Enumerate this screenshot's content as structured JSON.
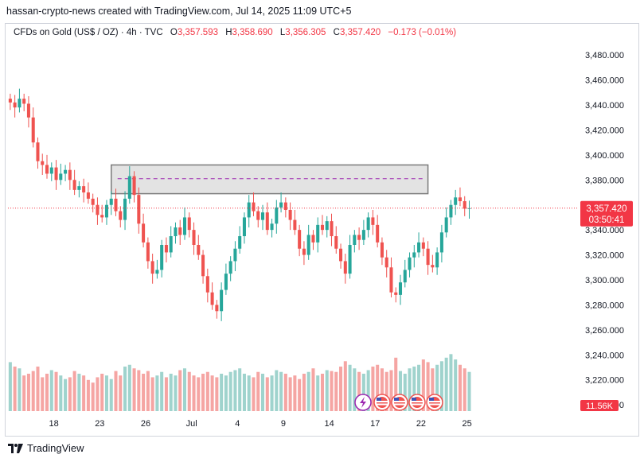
{
  "header": {
    "title": "hassan-crypto-news created with TradingView.com, Jul 14, 2025 11:09 UTC+5"
  },
  "legend": {
    "symbol": "CFDs on Gold (US$ / OZ) · 4h · TVC",
    "open_label": "O",
    "open": "3,357.593",
    "high_label": "H",
    "high": "3,358.690",
    "low_label": "L",
    "low": "3,356.305",
    "close_label": "C",
    "close": "3,357.420",
    "change": "−0.173 (−0.01%)"
  },
  "price_tag": {
    "price": "3,357.420",
    "countdown": "03:50:41"
  },
  "volume_tag": "11.56K",
  "footer": {
    "logo_text": "TradingView",
    "logo_icon": "tradingview-logo-icon"
  },
  "colors": {
    "up": "#26a69a",
    "down": "#ef5350",
    "up_vol": "#9fd3cd",
    "down_vol": "#f5a5a3",
    "price_line": "#f23645",
    "zone_fill": "#e0e0e0",
    "zone_line": "#9c27b0"
  },
  "chart_data": {
    "type": "candlestick",
    "y_ticks": [
      "3,480.000",
      "3,460.000",
      "3,440.000",
      "3,420.000",
      "3,400.000",
      "3,380.000",
      "3,360.000",
      "3,340.000",
      "3,320.000",
      "3,300.000",
      "3,280.000",
      "3,260.000",
      "3,240.000",
      "3,220.000",
      "3,200.000"
    ],
    "y_tick_values": [
      3480,
      3460,
      3440,
      3420,
      3400,
      3380,
      3360,
      3340,
      3320,
      3300,
      3280,
      3260,
      3240,
      3220,
      3200
    ],
    "ylim": [
      3195,
      3496
    ],
    "x_ticks": [
      {
        "label": "18",
        "index": 9.5
      },
      {
        "label": "23",
        "index": 19.5
      },
      {
        "label": "26",
        "index": 29.5
      },
      {
        "label": "Jul",
        "index": 39.5
      },
      {
        "label": "4",
        "index": 49.5
      },
      {
        "label": "9",
        "index": 59.5
      },
      {
        "label": "14",
        "index": 69.5
      },
      {
        "label": "17",
        "index": 79.5
      },
      {
        "label": "22",
        "index": 89.5
      },
      {
        "label": "25",
        "index": 99.5
      }
    ],
    "x_count": 124,
    "current_price": 3357.42,
    "resistance_zone": {
      "top": 3392,
      "bottom": 3369,
      "mid": 3381,
      "start_index": 22,
      "end_index": 91
    },
    "close": [
      3442,
      3438,
      3445,
      3441,
      3430,
      3410,
      3395,
      3392,
      3385,
      3390,
      3380,
      3385,
      3388,
      3380,
      3372,
      3375,
      3370,
      3365,
      3360,
      3352,
      3350,
      3360,
      3365,
      3355,
      3348,
      3365,
      3383,
      3368,
      3345,
      3330,
      3315,
      3305,
      3308,
      3328,
      3322,
      3335,
      3342,
      3336,
      3350,
      3340,
      3328,
      3320,
      3303,
      3290,
      3280,
      3275,
      3292,
      3305,
      3315,
      3325,
      3335,
      3350,
      3362,
      3355,
      3348,
      3354,
      3340,
      3345,
      3358,
      3362,
      3356,
      3348,
      3340,
      3325,
      3320,
      3336,
      3330,
      3344,
      3340,
      3347,
      3335,
      3325,
      3315,
      3305,
      3328,
      3336,
      3332,
      3340,
      3350,
      3344,
      3330,
      3318,
      3310,
      3290,
      3288,
      3298,
      3308,
      3318,
      3322,
      3330,
      3325,
      3312,
      3310,
      3322,
      3338,
      3350,
      3360,
      3366,
      3363,
      3357,
      3357.42
    ],
    "vol_scale_max": 100,
    "volume": [
      55,
      50,
      48,
      40,
      42,
      45,
      50,
      38,
      42,
      46,
      44,
      40,
      36,
      38,
      45,
      42,
      40,
      35,
      32,
      38,
      42,
      40,
      36,
      45,
      40,
      50,
      52,
      48,
      46,
      42,
      45,
      38,
      40,
      44,
      38,
      42,
      40,
      46,
      48,
      44,
      40,
      38,
      42,
      44,
      40,
      38,
      42,
      40,
      44,
      46,
      48,
      42,
      40,
      38,
      44,
      42,
      38,
      40,
      46,
      44,
      42,
      38,
      40,
      36,
      42,
      44,
      48,
      40,
      42,
      46,
      45,
      44,
      50,
      56,
      52,
      48,
      44,
      42,
      46,
      50,
      52,
      48,
      44,
      46,
      60,
      45,
      42,
      48,
      50,
      52,
      58,
      55,
      48,
      52,
      56,
      60,
      64,
      58,
      52,
      48,
      44
    ]
  }
}
